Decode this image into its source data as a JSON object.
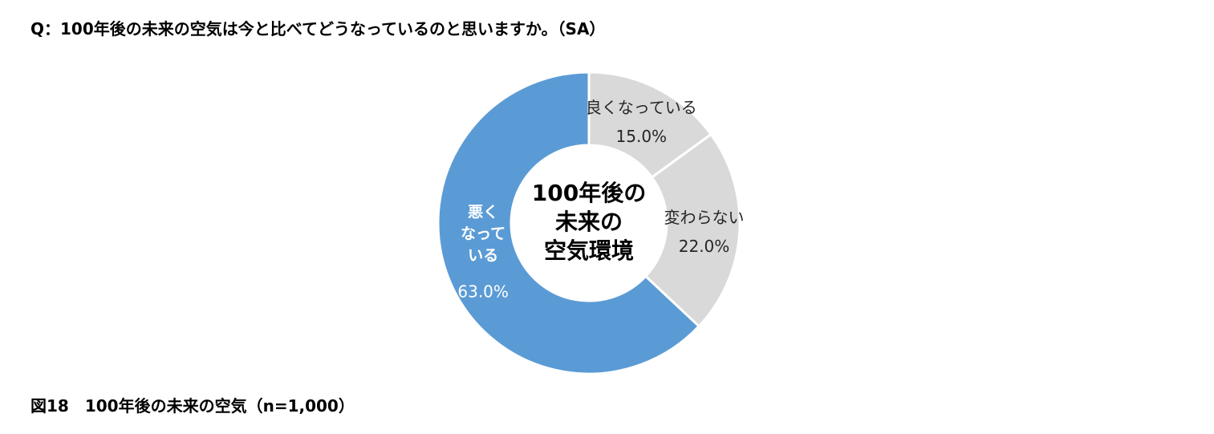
{
  "question": "Q：100年後の未来の空気は今と比べてどうなっているのと思いますか。（SA）",
  "caption": "図18　100年後の未来の空気（n=1,000）",
  "chart_data": {
    "type": "pie",
    "style": "donut",
    "center_label": [
      "100年後の",
      "未来の",
      "空気環境"
    ],
    "slices": [
      {
        "label": [
          "良くなっている"
        ],
        "value": 15.0,
        "display": "15.0%",
        "color": "#d9d9d9",
        "text_color": "#262626"
      },
      {
        "label": [
          "変わらない"
        ],
        "value": 22.0,
        "display": "22.0%",
        "color": "#d9d9d9",
        "text_color": "#262626"
      },
      {
        "label": [
          "悪く",
          "なって",
          "いる"
        ],
        "value": 63.0,
        "display": "63.0%",
        "color": "#5b9bd5",
        "text_color": "#ffffff"
      }
    ]
  }
}
